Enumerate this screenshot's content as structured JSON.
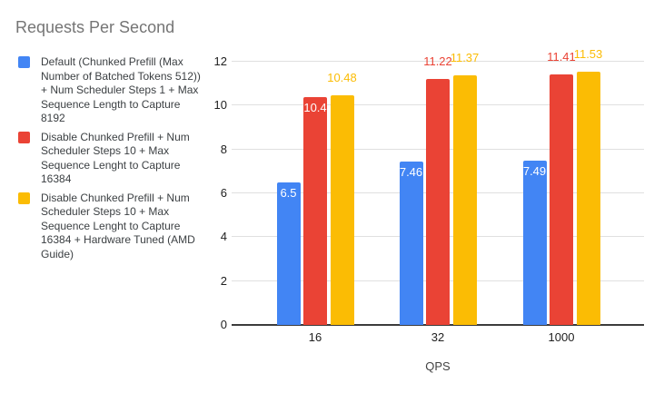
{
  "title": "Requests Per Second",
  "legend": {
    "items": [
      {
        "label": "Default (Chunked Prefill (Max Number of Batched Tokens 512)) + Num Scheduler Steps 1 + Max Sequence Length to Capture 8192",
        "color": "#4285F4"
      },
      {
        "label": "Disable Chunked Prefill + Num Scheduler Steps 10 + Max Sequence Lenght to Capture 16384",
        "color": "#EA4335"
      },
      {
        "label": "Disable Chunked Prefill + Num Scheduler Steps 10 + Max Sequence Lenght to Capture 16384 + Hardware Tuned (AMD Guide)",
        "color": "#FBBC04"
      }
    ]
  },
  "chart_data": {
    "type": "bar",
    "title": "Requests Per Second",
    "categories": [
      "16",
      "32",
      "1000"
    ],
    "series": [
      {
        "name": "Default (Chunked Prefill (Max Number of Batched Tokens 512)) + Num Scheduler Steps 1 + Max Sequence Length to Capture 8192",
        "color": "#4285F4",
        "values": [
          6.5,
          7.46,
          7.49
        ],
        "labels": [
          "6.5",
          "7.46",
          "7.49"
        ],
        "label_inside": [
          true,
          true,
          true
        ]
      },
      {
        "name": "Disable Chunked Prefill + Num Scheduler Steps 10 + Max Sequence Lenght to Capture 16384",
        "color": "#EA4335",
        "values": [
          10.4,
          11.22,
          11.41
        ],
        "labels": [
          "10.4",
          "11.22",
          "11.41"
        ],
        "label_inside": [
          true,
          false,
          false
        ]
      },
      {
        "name": "Disable Chunked Prefill + Num Scheduler Steps 10 + Max Sequence Lenght to Capture 16384 + Hardware Tuned (AMD Guide)",
        "color": "#FBBC04",
        "values": [
          10.48,
          11.37,
          11.53
        ],
        "labels": [
          "10.48",
          "11.37",
          "11.53"
        ],
        "label_inside": [
          false,
          false,
          false
        ]
      }
    ],
    "xlabel": "QPS",
    "ylim": [
      0,
      12
    ],
    "yticks": [
      0,
      2,
      4,
      6,
      8,
      10,
      12
    ],
    "grid": true,
    "legend_position": "left"
  },
  "colors": {
    "background": "#ffffff",
    "title_text": "#757575",
    "legend_text": "#3c4043",
    "axis_text": "#212121",
    "axis_title_text": "#424242",
    "gridline": "#e0e0e0",
    "baseline": "#3c3c3c",
    "bar_label_inside": "#ffffff"
  }
}
